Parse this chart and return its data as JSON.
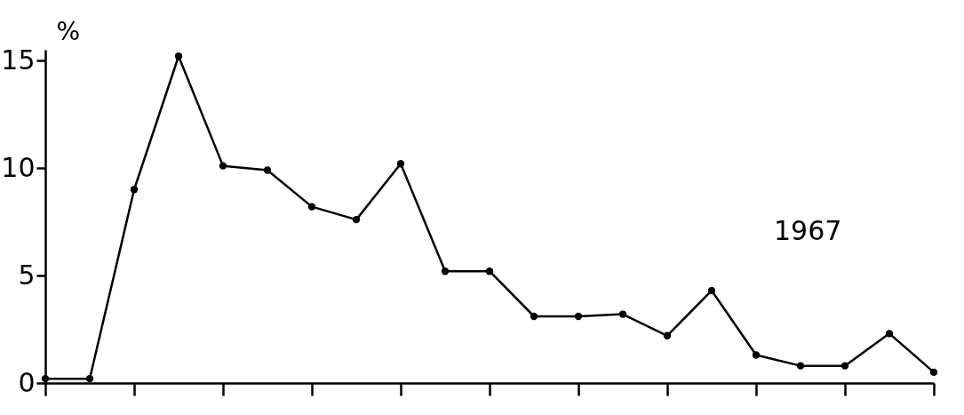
{
  "chart_data": {
    "type": "line",
    "ylabel": "%",
    "annotations": [
      "1967"
    ],
    "categories": [
      null,
      null,
      null,
      null,
      null,
      null,
      null,
      null,
      null,
      null,
      null,
      null,
      null,
      null,
      null,
      null,
      null,
      null,
      null,
      null,
      null
    ],
    "series": [
      {
        "color": "#000000",
        "values": [
          0.2,
          0.2,
          9.0,
          15.2,
          10.1,
          9.9,
          8.2,
          7.6,
          10.2,
          5.2,
          5.2,
          3.1,
          3.1,
          3.2,
          2.2,
          4.3,
          1.3,
          0.8,
          0.8,
          2.3,
          0.5
        ]
      }
    ],
    "ylim": [
      0,
      15.5
    ],
    "yticks": [
      0,
      5,
      10,
      15
    ],
    "tick_labels": "y",
    "grid": false,
    "marker": "circle",
    "line_style": "solid"
  }
}
